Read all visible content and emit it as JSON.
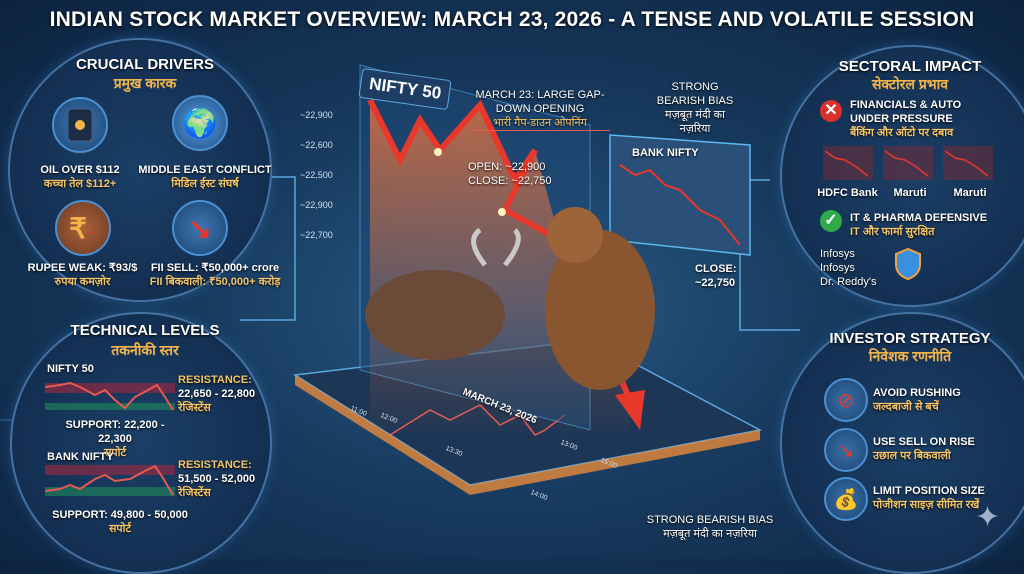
{
  "title": "INDIAN STOCK MARKET OVERVIEW: MARCH 23, 2026 - A TENSE AND VOLATILE SESSION",
  "drivers": {
    "title": "CRUCIAL DRIVERS",
    "title_hi": "प्रमुख कारक",
    "items": [
      {
        "icon": "oil-barrel-icon",
        "label": "OIL OVER $112",
        "label_hi": "कच्चा तेल $112+"
      },
      {
        "icon": "globe-conflict-icon",
        "label": "MIDDLE EAST CONFLICT",
        "label_hi": "मिडिल ईस्ट संघर्ष"
      },
      {
        "icon": "rupee-down-icon",
        "label": "RUPEE WEAK: ₹93/$",
        "label_hi": "रुपया कमज़ोर"
      },
      {
        "icon": "trend-down-icon",
        "label": "FII SELL: ₹50,000+ crore",
        "label_hi": "FII बिकवाली: ₹50,000+ करोड़"
      }
    ]
  },
  "technical": {
    "title": "TECHNICAL LEVELS",
    "title_hi": "तकनीकी स्तर",
    "nifty": {
      "name": "NIFTY 50",
      "resistance": "RESISTANCE:",
      "resistance_range": "22,650 - 22,800",
      "resistance_hi": "रेजिस्टेंस",
      "support": "SUPPORT: 22,200 - 22,300",
      "support_hi": "सपोर्ट"
    },
    "bank": {
      "name": "BANK NIFTY",
      "resistance": "RESISTANCE:",
      "resistance_range": "51,500 - 52,000",
      "resistance_hi": "रेजिस्टेंस",
      "support": "SUPPORT: 49,800 - 50,000",
      "support_hi": "सपोर्ट"
    }
  },
  "center": {
    "chart_title": "NIFTY 50",
    "y_ticks": [
      "~22,900",
      "~22,600",
      "~22,500",
      "~22,900",
      "~22,700"
    ],
    "gap_note": "MARCH 23: LARGE GAP-DOWN OPENING",
    "gap_note_hi": "भारी गैप-डाउन ओपनिंग",
    "open": "OPEN: ~22,900",
    "close": "CLOSE: ~22,750",
    "bias_top": "STRONG BEARISH BIAS",
    "bias_top_hi": "मज़बूत मंदी का नज़रिया",
    "bank_title": "BANK NIFTY",
    "bank_close": "CLOSE:",
    "bank_close_value": "~22,750",
    "date": "MARCH 23, 2026",
    "times": [
      "11:00",
      "12:00",
      "13:30",
      "13:00",
      "15:00",
      "14:00"
    ],
    "bias_bottom": "STRONG BEARISH BIAS",
    "bias_bottom_hi": "मज़बूत मंदी का नज़रिया"
  },
  "sectoral": {
    "title": "SECTORAL IMPACT",
    "title_hi": "सेक्टोरल प्रभाव",
    "negative": "FINANCIALS & AUTO UNDER PRESSURE",
    "negative_hi": "बैंकिंग और ऑटो पर दबाव",
    "stocks": [
      "HDFC Bank",
      "Maruti",
      "Maruti"
    ],
    "positive": "IT & PHARMA DEFENSIVE",
    "positive_hi": "IT और फार्मा सुरक्षित",
    "defensive": [
      "Infosys",
      "Infosys",
      "Dr. Reddy's"
    ]
  },
  "strategy": {
    "title": "INVESTOR STRATEGY",
    "title_hi": "निवेशक रणनीति",
    "items": [
      {
        "icon": "no-entry-icon",
        "label": "AVOID RUSHING",
        "label_hi": "जल्दबाजी से बचें"
      },
      {
        "icon": "trend-down-icon",
        "label": "USE SELL ON RISE",
        "label_hi": "उछाल पर बिकवाली"
      },
      {
        "icon": "money-bag-icon",
        "label": "LIMIT POSITION SIZE",
        "label_hi": "पोजीशन साइज़ सीमित रखें"
      }
    ]
  },
  "colors": {
    "accent": "#f3b54a",
    "bear": "#e8382c",
    "bull": "#2fbf71",
    "panel_border": "#6eaae6"
  }
}
